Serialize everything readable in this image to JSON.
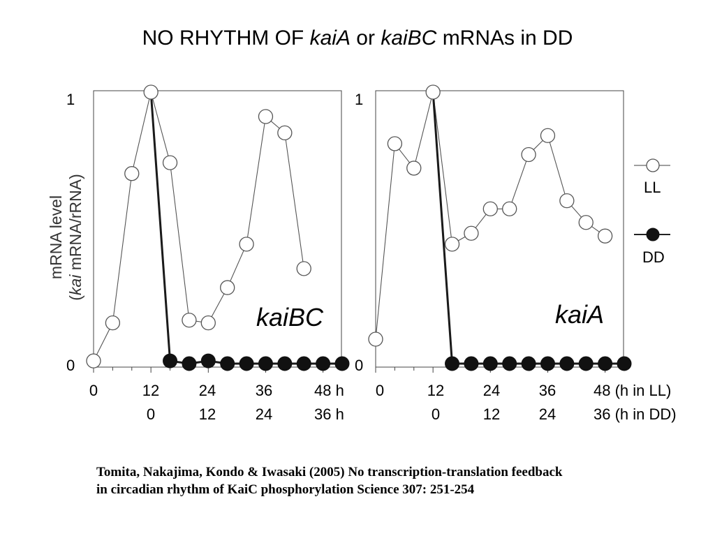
{
  "title": {
    "prefix": "NO RHYTHM OF ",
    "gene1": "kaiA",
    "middle": " or ",
    "gene2": "kaiBC",
    "suffix": " mRNAs in DD"
  },
  "citation": {
    "line1": "Tomita, Nakajima, Kondo & Iwasaki (2005) No transcription-translation feedback",
    "line2": "in circadian rhythm of KaiC phosphorylation Science 307: 251-254"
  },
  "y_axis": {
    "label_line1": "mRNA level",
    "label_line2_italic": "kai",
    "label_line2_rest": " mRNA/rRNA)",
    "label_line2_open": "(",
    "tick_top": "1",
    "tick_bottom": "0"
  },
  "x_axis": {
    "ll_row": [
      "0",
      "12",
      "24",
      "36",
      "48 h"
    ],
    "dd_row": [
      "0",
      "12",
      "24",
      "36 h"
    ],
    "right_ll_row": [
      "0",
      "12",
      "24",
      "36",
      "48 (h in LL)"
    ],
    "right_dd_row": [
      "0",
      "12",
      "24",
      "36 (h in DD)"
    ]
  },
  "legend": {
    "ll_label": "LL",
    "dd_label": "DD"
  },
  "chart_data": [
    {
      "type": "line",
      "panel_label": "kaiBC",
      "xlabel": "h in LL / h in DD",
      "ylabel": "mRNA level (kai mRNA/rRNA)",
      "xlim": [
        0,
        52
      ],
      "ylim": [
        0,
        1
      ],
      "series": [
        {
          "name": "LL",
          "marker": "open-circle",
          "x": [
            0,
            4,
            8,
            12,
            16,
            20,
            24,
            28,
            32,
            36,
            40,
            44
          ],
          "y": [
            0.01,
            0.15,
            0.7,
            1.0,
            0.74,
            0.16,
            0.15,
            0.28,
            0.44,
            0.91,
            0.85,
            0.35
          ]
        },
        {
          "name": "DD",
          "marker": "filled-circle",
          "x": [
            12,
            16,
            20,
            24,
            28,
            32,
            36,
            40,
            44,
            48,
            52
          ],
          "y": [
            1.0,
            0.01,
            0.0,
            0.01,
            0.0,
            0.0,
            0.0,
            0.0,
            0.0,
            0.0,
            0.0
          ]
        }
      ]
    },
    {
      "type": "line",
      "panel_label": "kaiA",
      "xlabel": "h in LL / h in DD",
      "ylabel": "mRNA level (kai mRNA/rRNA)",
      "xlim": [
        0,
        52
      ],
      "ylim": [
        0,
        1
      ],
      "series": [
        {
          "name": "LL",
          "marker": "open-circle",
          "x": [
            0,
            4,
            8,
            12,
            16,
            20,
            24,
            28,
            32,
            36,
            40,
            44,
            48
          ],
          "y": [
            0.09,
            0.81,
            0.72,
            1.0,
            0.44,
            0.48,
            0.57,
            0.57,
            0.77,
            0.84,
            0.6,
            0.52,
            0.47
          ]
        },
        {
          "name": "DD",
          "marker": "filled-circle",
          "x": [
            12,
            16,
            20,
            24,
            28,
            32,
            36,
            40,
            44,
            48,
            52
          ],
          "y": [
            1.0,
            0.0,
            0.0,
            0.0,
            0.0,
            0.0,
            0.0,
            0.0,
            0.0,
            0.0,
            0.0
          ]
        }
      ]
    }
  ]
}
